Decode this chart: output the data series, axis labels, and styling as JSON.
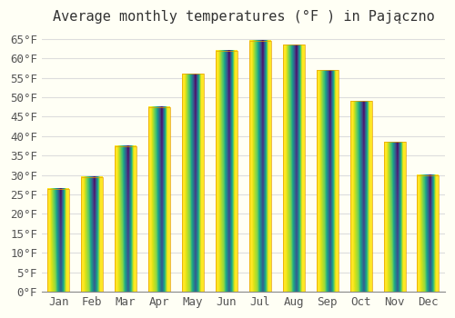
{
  "title": "Average monthly temperatures (°F ) in Pajączno",
  "months": [
    "Jan",
    "Feb",
    "Mar",
    "Apr",
    "May",
    "Jun",
    "Jul",
    "Aug",
    "Sep",
    "Oct",
    "Nov",
    "Dec"
  ],
  "values": [
    26.5,
    29.5,
    37.5,
    47.5,
    56.0,
    62.0,
    64.5,
    63.5,
    57.0,
    49.0,
    38.5,
    30.0
  ],
  "bar_color_top": "#FFC200",
  "bar_color_bottom": "#FFD966",
  "bar_edge_color": "none",
  "background_color": "#FFFFF5",
  "grid_color": "#DDDDDD",
  "ylim": [
    0,
    67
  ],
  "yticks": [
    0,
    5,
    10,
    15,
    20,
    25,
    30,
    35,
    40,
    45,
    50,
    55,
    60,
    65
  ],
  "title_fontsize": 11,
  "tick_fontsize": 9,
  "font_family": "monospace"
}
